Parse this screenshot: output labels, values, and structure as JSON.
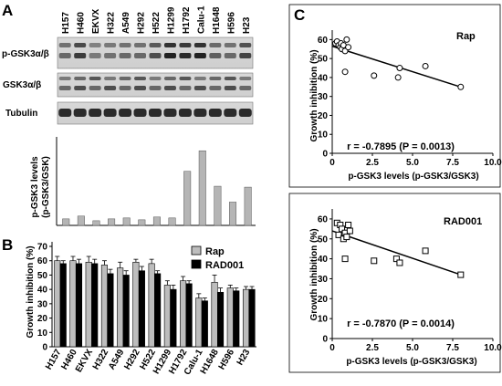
{
  "panels": {
    "a": "A",
    "b": "B",
    "c": "C"
  },
  "blot": {
    "cell_lines": [
      "H157",
      "H460",
      "EKVX",
      "H322",
      "A549",
      "H292",
      "H522",
      "H1299",
      "H1792",
      "Calu-1",
      "H1648",
      "H596",
      "H23"
    ],
    "row_labels": [
      "p-GSK3α/β",
      "GSK3α/β",
      "Tubulin"
    ]
  },
  "colors": {
    "rap_bar": "#bdbdbd",
    "rad_bar": "#000000",
    "ratio_bar": "#b5b5b5"
  },
  "chart_data": [
    {
      "id": "ratio",
      "type": "bar",
      "categories": [
        "H157",
        "H460",
        "EKVX",
        "H322",
        "A549",
        "H292",
        "H522",
        "H1299",
        "H1792",
        "Calu-1",
        "H1648",
        "H596",
        "H23"
      ],
      "values": [
        0.7,
        1.0,
        0.5,
        0.7,
        0.8,
        0.6,
        0.9,
        0.8,
        5.8,
        8.0,
        4.2,
        2.5,
        4.1
      ],
      "ylabel_line1": "p-GSK3 levels",
      "ylabel_line2": "(p-GSK3/GSK)",
      "ylim": [
        0,
        9
      ],
      "grid": false
    },
    {
      "id": "growth",
      "type": "bar",
      "categories": [
        "H157",
        "H460",
        "EKVX",
        "H322",
        "A549",
        "H292",
        "H522",
        "H1299",
        "H1792",
        "Calu-1",
        "H1648",
        "H596",
        "H23"
      ],
      "series": [
        {
          "name": "Rap",
          "values": [
            60,
            60,
            59,
            57,
            55,
            59,
            58,
            43,
            46,
            34,
            45,
            41,
            40
          ],
          "errors": [
            3,
            3,
            4,
            3,
            4,
            2,
            3,
            3,
            3,
            3,
            5,
            2,
            2
          ]
        },
        {
          "name": "RAD001",
          "values": [
            58,
            58,
            58,
            51,
            50,
            53,
            51,
            40,
            44,
            32,
            38,
            39,
            40
          ],
          "errors": [
            2,
            3,
            3,
            3,
            3,
            3,
            2,
            3,
            2,
            2,
            3,
            2,
            2
          ]
        }
      ],
      "ylabel": "Growth inhibition (%)",
      "yticks": [
        "0",
        "10",
        "20",
        "30",
        "40",
        "50",
        "60",
        "70"
      ],
      "ylim": [
        0,
        70
      ],
      "legend_position": "top-right"
    },
    {
      "id": "rap-scatter",
      "type": "scatter",
      "title": "Rap",
      "marker": "circle",
      "points": [
        [
          0.2,
          58
        ],
        [
          0.3,
          59
        ],
        [
          0.4,
          57
        ],
        [
          0.5,
          56
        ],
        [
          0.55,
          58
        ],
        [
          0.6,
          55
        ],
        [
          0.7,
          57
        ],
        [
          0.8,
          54
        ],
        [
          0.9,
          60
        ],
        [
          1.0,
          56
        ],
        [
          0.8,
          43
        ],
        [
          2.6,
          41
        ],
        [
          4.1,
          40
        ],
        [
          4.2,
          45
        ],
        [
          5.8,
          46
        ],
        [
          8.0,
          35
        ]
      ],
      "fit": [
        [
          0,
          56.5
        ],
        [
          8.0,
          35
        ]
      ],
      "xlabel": "p-GSK3 levels (p-GSK3/GSK3)",
      "ylabel": "Growth inhibition (%)",
      "xticks": [
        "0",
        "2.5",
        "5.0",
        "7.5",
        "10.0"
      ],
      "yticks": [
        "0",
        "10",
        "20",
        "30",
        "40",
        "50",
        "60"
      ],
      "xlim": [
        0,
        10
      ],
      "ylim": [
        0,
        65
      ],
      "annotation": "r = -0.7895 (P = 0.0013)"
    },
    {
      "id": "rad-scatter",
      "type": "scatter",
      "title": "RAD001",
      "marker": "square",
      "points": [
        [
          0.3,
          58
        ],
        [
          0.4,
          52
        ],
        [
          0.5,
          57
        ],
        [
          0.6,
          55
        ],
        [
          0.7,
          50
        ],
        [
          0.8,
          53
        ],
        [
          0.9,
          51
        ],
        [
          1.0,
          57
        ],
        [
          1.1,
          54
        ],
        [
          0.8,
          40
        ],
        [
          2.6,
          39
        ],
        [
          4.0,
          40
        ],
        [
          4.2,
          38
        ],
        [
          5.8,
          44
        ],
        [
          8.0,
          32
        ]
      ],
      "fit": [
        [
          0,
          54
        ],
        [
          8.0,
          32
        ]
      ],
      "xlabel": "p-GSK3 levels (p-GSK3/GSK3)",
      "ylabel": "Growth inhibition (%)",
      "xticks": [
        "0",
        "2.5",
        "5.0",
        "7.5",
        "10.0"
      ],
      "yticks": [
        "0",
        "10",
        "20",
        "30",
        "40",
        "50",
        "60"
      ],
      "xlim": [
        0,
        10
      ],
      "ylim": [
        0,
        65
      ],
      "annotation": "r = -0.7870 (P = 0.0014)"
    }
  ]
}
